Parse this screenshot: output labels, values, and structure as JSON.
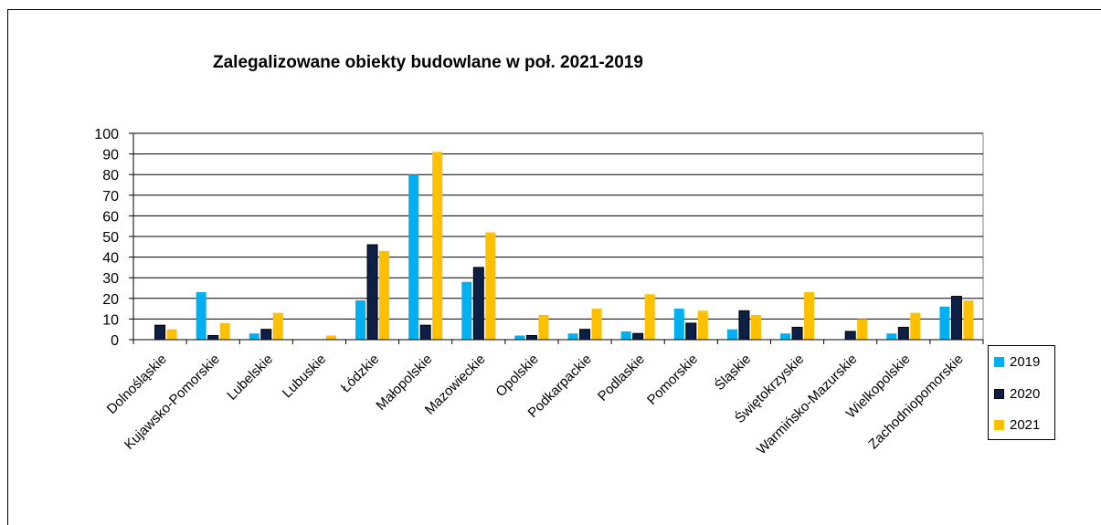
{
  "chart_data": {
    "type": "bar",
    "title": "Zalegalizowane obiekty budowlane w poł. 2021-2019",
    "xlabel": "",
    "ylabel": "",
    "ylim": [
      0,
      100
    ],
    "yticks": [
      0,
      10,
      20,
      30,
      40,
      50,
      60,
      70,
      80,
      90,
      100
    ],
    "grid": true,
    "legend_position": "right",
    "categories": [
      "Dolnośląskie",
      "Kujawsko-Pomorskie",
      "Lubelskie",
      "Lubuskie",
      "Łódzkie",
      "Małopolskie",
      "Mazowieckie",
      "Opolskie",
      "Podkarpackie",
      "Podlaskie",
      "Pomorskie",
      "Śląskie",
      "Świętokrzyskie",
      "Warmińsko-Mazurskie",
      "Wielkopolskie",
      "Zachodniopomorskie"
    ],
    "series": [
      {
        "name": "2019",
        "color": "#00B0F0",
        "values": [
          0,
          23,
          3,
          0,
          19,
          80,
          28,
          2,
          3,
          4,
          15,
          5,
          3,
          0,
          3,
          16
        ]
      },
      {
        "name": "2020",
        "color": "#0D1F47",
        "values": [
          7,
          2,
          5,
          0,
          46,
          7,
          35,
          2,
          5,
          3,
          8,
          14,
          6,
          4,
          6,
          21
        ]
      },
      {
        "name": "2021",
        "color": "#FFC000",
        "values": [
          5,
          8,
          13,
          2,
          43,
          91,
          52,
          12,
          15,
          22,
          14,
          12,
          23,
          10,
          13,
          19
        ]
      }
    ]
  }
}
